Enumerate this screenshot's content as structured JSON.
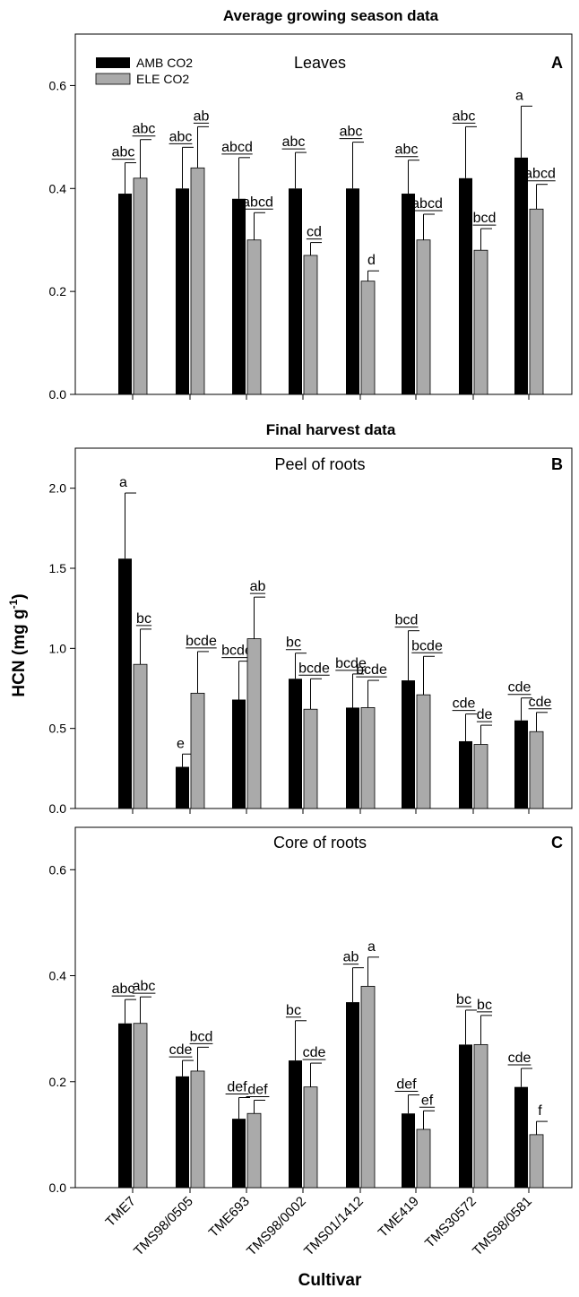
{
  "figure": {
    "ylabel": "HCN (mg g",
    "ylabel_sup": "-1",
    "ylabel_close": ")",
    "xlabel": "Cultivar"
  },
  "legend": {
    "items": [
      {
        "label": "AMB CO2",
        "color": "#000000"
      },
      {
        "label": "ELE CO2",
        "color": "#aaaaaa"
      }
    ]
  },
  "colors": {
    "amb": "#000000",
    "ele": "#aaaaaa",
    "axis": "#000000"
  },
  "chart_data": [
    {
      "type": "bar",
      "title": "Average growing season data",
      "subtitle": "Leaves",
      "letter": "A",
      "categories": [
        "TME7",
        "TMS98/0505",
        "TME693",
        "TMS98/0002",
        "TMS01/1412",
        "TME419",
        "TMS30572",
        "TMS98/0581"
      ],
      "ylim": [
        0,
        0.7
      ],
      "yticks": [
        "0.0",
        "0.2",
        "0.4",
        "0.6"
      ],
      "series": [
        {
          "name": "AMB CO2",
          "values": [
            0.39,
            0.4,
            0.38,
            0.4,
            0.4,
            0.39,
            0.42,
            0.46
          ],
          "errors": [
            0.06,
            0.08,
            0.08,
            0.07,
            0.09,
            0.065,
            0.1,
            0.1
          ],
          "labels": [
            "abc",
            "abc",
            "abcd",
            "abc",
            "abc",
            "abc",
            "abc",
            "a"
          ]
        },
        {
          "name": "ELE CO2",
          "values": [
            0.42,
            0.44,
            0.3,
            0.27,
            0.22,
            0.3,
            0.28,
            0.36
          ],
          "errors": [
            0.075,
            0.08,
            0.053,
            0.025,
            0.02,
            0.05,
            0.042,
            0.048
          ],
          "labels": [
            "abc",
            "ab",
            "abcd",
            "cd",
            "d",
            "abcd",
            "bcd",
            "abcd"
          ]
        }
      ]
    },
    {
      "type": "bar",
      "title": "Final harvest data",
      "subtitle": "Peel of roots",
      "letter": "B",
      "categories": [
        "TME7",
        "TMS98/0505",
        "TME693",
        "TMS98/0002",
        "TMS01/1412",
        "TME419",
        "TMS30572",
        "TMS98/0581"
      ],
      "ylim": [
        0,
        2.25
      ],
      "yticks": [
        "0.0",
        "0.5",
        "1.0",
        "1.5",
        "2.0"
      ],
      "series": [
        {
          "name": "AMB CO2",
          "values": [
            1.56,
            0.26,
            0.68,
            0.81,
            0.63,
            0.8,
            0.42,
            0.55
          ],
          "errors": [
            0.41,
            0.08,
            0.24,
            0.16,
            0.21,
            0.31,
            0.17,
            0.14
          ],
          "labels": [
            "a",
            "e",
            "bcde",
            "bc",
            "bcde",
            "bcd",
            "cde",
            "cde"
          ]
        },
        {
          "name": "ELE CO2",
          "values": [
            0.9,
            0.72,
            1.06,
            0.62,
            0.63,
            0.71,
            0.4,
            0.48
          ],
          "errors": [
            0.22,
            0.26,
            0.26,
            0.19,
            0.17,
            0.24,
            0.12,
            0.12
          ],
          "labels": [
            "bc",
            "bcde",
            "ab",
            "bcde",
            "bcde",
            "bcde",
            "de",
            "cde"
          ]
        }
      ]
    },
    {
      "type": "bar",
      "title": "",
      "subtitle": "Core of roots",
      "letter": "C",
      "categories": [
        "TME7",
        "TMS98/0505",
        "TME693",
        "TMS98/0002",
        "TMS01/1412",
        "TME419",
        "TMS30572",
        "TMS98/0581"
      ],
      "ylim": [
        0,
        0.68
      ],
      "yticks": [
        "0.0",
        "0.2",
        "0.4",
        "0.6"
      ],
      "series": [
        {
          "name": "AMB CO2",
          "values": [
            0.31,
            0.21,
            0.13,
            0.24,
            0.35,
            0.14,
            0.27,
            0.19
          ],
          "errors": [
            0.045,
            0.03,
            0.04,
            0.075,
            0.065,
            0.035,
            0.065,
            0.035
          ],
          "labels": [
            "abc",
            "cde",
            "def",
            "bc",
            "ab",
            "def",
            "bc",
            "cde"
          ]
        },
        {
          "name": "ELE CO2",
          "values": [
            0.31,
            0.22,
            0.14,
            0.19,
            0.38,
            0.11,
            0.27,
            0.1
          ],
          "errors": [
            0.05,
            0.045,
            0.025,
            0.045,
            0.055,
            0.035,
            0.055,
            0.025
          ],
          "labels": [
            "abc",
            "bcd",
            "def",
            "cde",
            "a",
            "ef",
            "bc",
            "f"
          ]
        }
      ]
    }
  ]
}
